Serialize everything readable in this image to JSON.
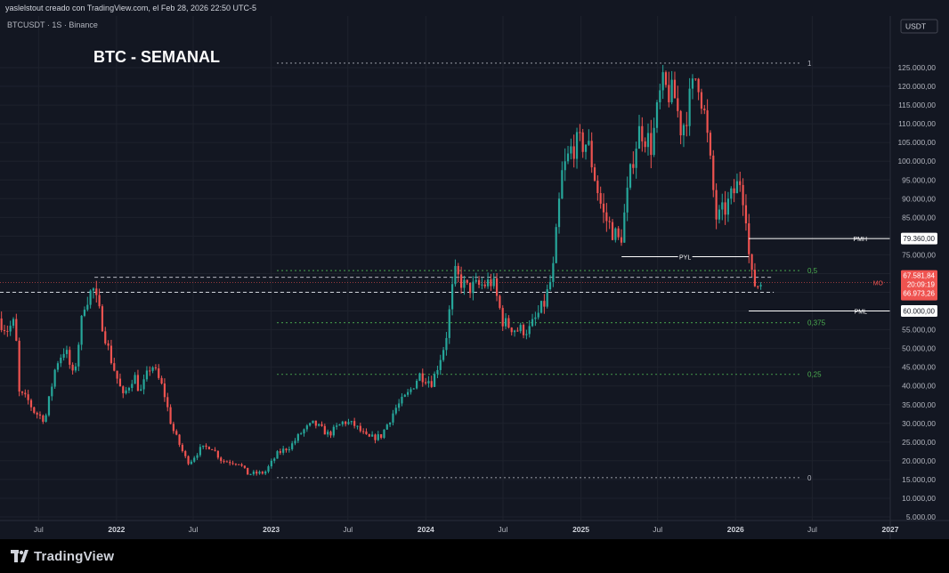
{
  "header": {
    "attribution": "yaslelstout creado con TradingView.com, el Feb 28, 2026 22:50 UTC-5",
    "symbol_line": "BTCUSDT · 1S · Binance",
    "chart_title": "BTC - SEMANAL",
    "currency_button": "USDT"
  },
  "footer": {
    "brand": "TradingView"
  },
  "colors": {
    "background": "#131722",
    "up": "#26a69a",
    "down": "#ef5350",
    "fib": "#4caf50",
    "grid": "#1e222d",
    "axis_text": "#b2b5be"
  },
  "chart_data": {
    "type": "candlestick",
    "title": "BTC - SEMANAL",
    "symbol": "BTCUSDT",
    "interval": "1S",
    "exchange": "Binance",
    "ylim": [
      5000,
      130000
    ],
    "xlim": [
      "2021-04-01",
      "2027-01-01"
    ],
    "y_ticks": [
      {
        "value": 125000,
        "label": "125.000,00"
      },
      {
        "value": 120000,
        "label": "120.000,00"
      },
      {
        "value": 115000,
        "label": "115.000,00"
      },
      {
        "value": 110000,
        "label": "110.000,00"
      },
      {
        "value": 105000,
        "label": "105.000,00"
      },
      {
        "value": 100000,
        "label": "100.000,00"
      },
      {
        "value": 95000,
        "label": "95.000,00"
      },
      {
        "value": 90000,
        "label": "90.000,00"
      },
      {
        "value": 85000,
        "label": "85.000,00"
      },
      {
        "value": 80000,
        "label": "80.000,00"
      },
      {
        "value": 75000,
        "label": "75.000,00"
      },
      {
        "value": 70000,
        "label": "70.000,00"
      },
      {
        "value": 65000,
        "label": "65.000,00"
      },
      {
        "value": 60000,
        "label": "60.000,00"
      },
      {
        "value": 55000,
        "label": "55.000,00"
      },
      {
        "value": 50000,
        "label": "50.000,00"
      },
      {
        "value": 45000,
        "label": "45.000,00"
      },
      {
        "value": 40000,
        "label": "40.000,00"
      },
      {
        "value": 35000,
        "label": "35.000,00"
      },
      {
        "value": 30000,
        "label": "30.000,00"
      },
      {
        "value": 25000,
        "label": "25.000,00"
      },
      {
        "value": 20000,
        "label": "20.000,00"
      },
      {
        "value": 15000,
        "label": "15.000,00"
      },
      {
        "value": 10000,
        "label": "10.000,00"
      },
      {
        "value": 5000,
        "label": "5.000,00"
      }
    ],
    "x_ticks": [
      {
        "date": "2021-07-01",
        "label": "Jul",
        "bold": false
      },
      {
        "date": "2022-01-01",
        "label": "2022",
        "bold": true
      },
      {
        "date": "2022-07-01",
        "label": "Jul",
        "bold": false
      },
      {
        "date": "2023-01-01",
        "label": "2023",
        "bold": true
      },
      {
        "date": "2023-07-01",
        "label": "Jul",
        "bold": false
      },
      {
        "date": "2024-01-01",
        "label": "2024",
        "bold": true
      },
      {
        "date": "2024-07-01",
        "label": "Jul",
        "bold": false
      },
      {
        "date": "2025-01-01",
        "label": "2025",
        "bold": true
      },
      {
        "date": "2025-07-01",
        "label": "Jul",
        "bold": false
      },
      {
        "date": "2026-01-01",
        "label": "2026",
        "bold": true
      },
      {
        "date": "2026-07-01",
        "label": "Jul",
        "bold": false
      },
      {
        "date": "2027-01-01",
        "label": "2027",
        "bold": true
      }
    ],
    "price_path": [
      [
        "2021-04-01",
        58000
      ],
      [
        "2021-04-20",
        55000
      ],
      [
        "2021-05-10",
        57000
      ],
      [
        "2021-05-20",
        38000
      ],
      [
        "2021-06-10",
        36000
      ],
      [
        "2021-06-25",
        33000
      ],
      [
        "2021-07-20",
        31000
      ],
      [
        "2021-08-15",
        46000
      ],
      [
        "2021-09-05",
        50000
      ],
      [
        "2021-09-25",
        42000
      ],
      [
        "2021-10-20",
        62000
      ],
      [
        "2021-11-10",
        66000
      ],
      [
        "2021-12-01",
        57000
      ],
      [
        "2021-12-20",
        48000
      ],
      [
        "2022-01-20",
        37000
      ],
      [
        "2022-02-15",
        43000
      ],
      [
        "2022-03-01",
        38000
      ],
      [
        "2022-03-28",
        46000
      ],
      [
        "2022-04-25",
        39000
      ],
      [
        "2022-05-15",
        29000
      ],
      [
        "2022-06-15",
        21000
      ],
      [
        "2022-06-25",
        19500
      ],
      [
        "2022-07-20",
        23000
      ],
      [
        "2022-08-15",
        24000
      ],
      [
        "2022-09-10",
        20000
      ],
      [
        "2022-10-20",
        19500
      ],
      [
        "2022-11-10",
        16500
      ],
      [
        "2022-12-20",
        16800
      ],
      [
        "2023-01-20",
        22000
      ],
      [
        "2023-02-20",
        24000
      ],
      [
        "2023-03-20",
        28000
      ],
      [
        "2023-04-15",
        30000
      ],
      [
        "2023-05-20",
        27000
      ],
      [
        "2023-06-25",
        30500
      ],
      [
        "2023-07-20",
        29500
      ],
      [
        "2023-08-20",
        26000
      ],
      [
        "2023-09-20",
        26500
      ],
      [
        "2023-10-25",
        34000
      ],
      [
        "2023-11-25",
        38000
      ],
      [
        "2023-12-20",
        43000
      ],
      [
        "2024-01-20",
        41000
      ],
      [
        "2024-02-20",
        52000
      ],
      [
        "2024-03-12",
        70000
      ],
      [
        "2024-04-10",
        66000
      ],
      [
        "2024-05-20",
        67000
      ],
      [
        "2024-06-10",
        68000
      ],
      [
        "2024-07-05",
        57000
      ],
      [
        "2024-08-05",
        55000
      ],
      [
        "2024-09-05",
        55000
      ],
      [
        "2024-10-10",
        62000
      ],
      [
        "2024-10-30",
        70000
      ],
      [
        "2024-11-20",
        96000
      ],
      [
        "2024-12-15",
        104000
      ],
      [
        "2025-01-20",
        105000
      ],
      [
        "2025-02-25",
        86000
      ],
      [
        "2025-04-07",
        78000
      ],
      [
        "2025-05-10",
        103000
      ],
      [
        "2025-05-25",
        109000
      ],
      [
        "2025-06-20",
        104000
      ],
      [
        "2025-07-14",
        120000
      ],
      [
        "2025-08-14",
        117000
      ],
      [
        "2025-08-30",
        108000
      ],
      [
        "2025-10-06",
        124000
      ],
      [
        "2025-10-25",
        111000
      ],
      [
        "2025-11-21",
        84000
      ],
      [
        "2025-12-15",
        88000
      ],
      [
        "2026-01-15",
        95000
      ],
      [
        "2026-01-28",
        88000
      ],
      [
        "2026-02-08",
        70000
      ],
      [
        "2026-02-20",
        67000
      ],
      [
        "2026-02-28",
        66973
      ]
    ],
    "fib_levels": [
      {
        "value": 126200,
        "label": "1",
        "color": "#b2b5be",
        "start": "2023-01-15"
      },
      {
        "value": 70800,
        "label": "0,5",
        "color": "#4caf50",
        "start": "2023-01-15"
      },
      {
        "value": 56900,
        "label": "0,375",
        "color": "#4caf50",
        "start": "2023-01-15"
      },
      {
        "value": 43100,
        "label": "0,25",
        "color": "#4caf50",
        "start": "2023-01-15"
      },
      {
        "value": 15500,
        "label": "0",
        "color": "#b2b5be",
        "start": "2023-01-15"
      }
    ],
    "dashed_levels": [
      {
        "value": 69000,
        "start": "2021-11-10",
        "end": "2026-04-01"
      },
      {
        "value": 65000,
        "start": "2021-04-01",
        "end": "2026-04-01"
      }
    ],
    "key_levels": [
      {
        "label": "PMH",
        "value": 79360,
        "tag": "79.360,00",
        "start": "2026-02-01"
      },
      {
        "label": "PYL",
        "value": 74500,
        "start": "2025-04-07",
        "end": "2026-02-01"
      },
      {
        "label": "PML",
        "value": 60000,
        "tag": "60.000,00",
        "start": "2026-02-01"
      }
    ],
    "open_level": {
      "label": "MO",
      "value": 67582
    },
    "current_price": {
      "value": 67581.84,
      "label": "67.581,84",
      "countdown": "20:09:19",
      "extra_label": "66.973,26"
    }
  }
}
